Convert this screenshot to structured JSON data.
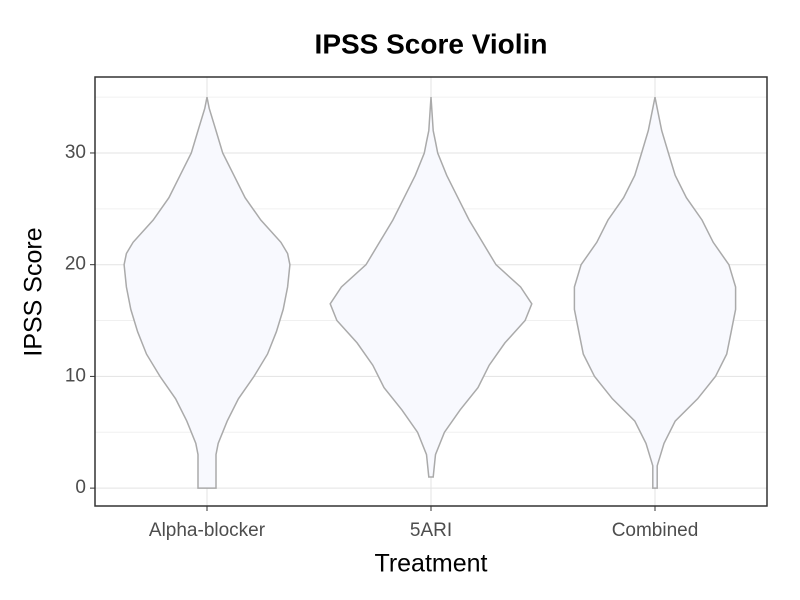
{
  "chart_data": {
    "type": "violin",
    "title": "IPSS Score Violin",
    "x_label": "Treatment",
    "y_label": "IPSS Score",
    "categories": [
      "Alpha-blocker",
      "5ARI",
      "Combined"
    ],
    "fill": "#f8f9fe",
    "stroke": "#aaaaaa",
    "series": [
      {
        "y": [
          0,
          1,
          2,
          3,
          4,
          6,
          8,
          10,
          12,
          14,
          16,
          18,
          20,
          21,
          22,
          24,
          26,
          28,
          30,
          32,
          34,
          35
        ],
        "width": [
          0.04,
          0.04,
          0.04,
          0.04,
          0.05,
          0.09,
          0.14,
          0.21,
          0.27,
          0.31,
          0.34,
          0.36,
          0.37,
          0.36,
          0.33,
          0.24,
          0.17,
          0.12,
          0.07,
          0.04,
          0.01,
          0
        ]
      },
      {
        "y": [
          1,
          3,
          5,
          7,
          9,
          11,
          13,
          15,
          16.5,
          18,
          20,
          22,
          24,
          26,
          28,
          30,
          31,
          32,
          35
        ],
        "width": [
          0.01,
          0.02,
          0.06,
          0.13,
          0.21,
          0.26,
          0.33,
          0.42,
          0.45,
          0.4,
          0.29,
          0.23,
          0.17,
          0.12,
          0.07,
          0.03,
          0.02,
          0.01,
          0
        ]
      },
      {
        "y": [
          0,
          2,
          4,
          6,
          8,
          10,
          12,
          14,
          16,
          17,
          18,
          20,
          22,
          24,
          26,
          28,
          30,
          32,
          34,
          35
        ],
        "width": [
          0.01,
          0.01,
          0.04,
          0.09,
          0.19,
          0.27,
          0.32,
          0.34,
          0.36,
          0.36,
          0.36,
          0.33,
          0.26,
          0.21,
          0.14,
          0.09,
          0.06,
          0.03,
          0.01,
          0
        ]
      }
    ],
    "ylim": [
      -1.6,
      36.8
    ],
    "yticks": [
      0,
      10,
      20,
      30
    ],
    "yminor": [
      5,
      15,
      25,
      35
    ],
    "grid": true
  }
}
